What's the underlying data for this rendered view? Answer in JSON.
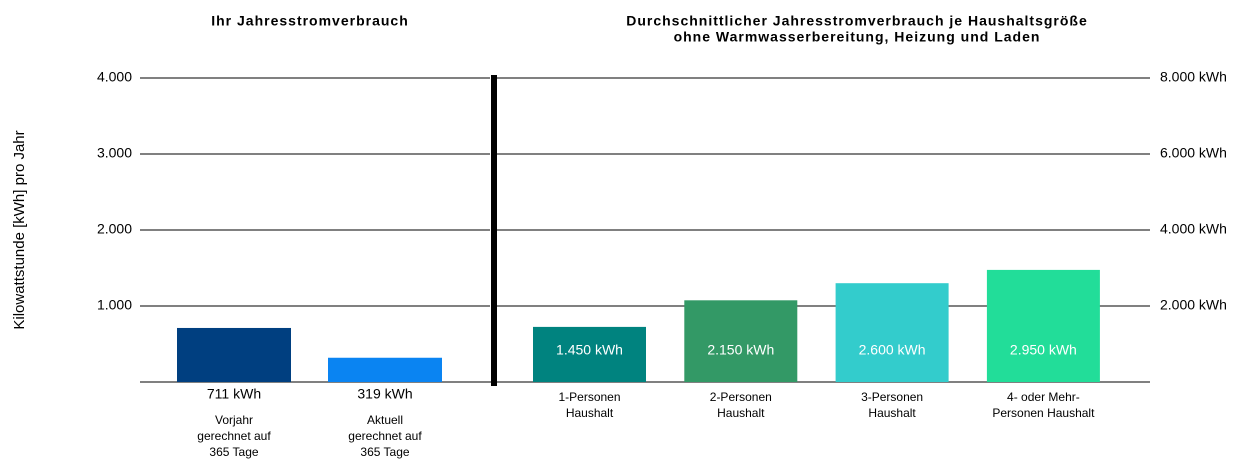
{
  "chart_data": [
    {
      "type": "bar",
      "title": "Ihr Jahresstromverbrauch",
      "ylabel": "Kilowattstunde [kWh] pro Jahr",
      "categories": [
        [
          "Vorjahr",
          "gerechnet auf",
          "365 Tage"
        ],
        [
          "Aktuell",
          "gerechnet auf",
          "365 Tage"
        ]
      ],
      "values": [
        711,
        319
      ],
      "value_labels": [
        "711 kWh",
        "319 kWh"
      ],
      "colors": [
        "#003f80",
        "#0a84f2"
      ],
      "ylim": [
        0,
        4000
      ],
      "yticks": [
        {
          "value": 1000,
          "label": "1.000"
        },
        {
          "value": 2000,
          "label": "2.000"
        },
        {
          "value": 3000,
          "label": "3.000"
        },
        {
          "value": 4000,
          "label": "4.000"
        }
      ],
      "grid": true
    },
    {
      "type": "bar",
      "title": "Durchschnittlicher Jahresstromverbrauch je Haushaltsgröße",
      "subtitle": "ohne Warmwasserbereitung, Heizung und Laden",
      "categories": [
        [
          "1-Personen",
          "Haushalt"
        ],
        [
          "2-Personen",
          "Haushalt"
        ],
        [
          "3-Personen",
          "Haushalt"
        ],
        [
          "4- oder Mehr-",
          "Personen Haushalt"
        ]
      ],
      "series": [
        {
          "axis": "y2",
          "values": [
            1450,
            2150,
            2600,
            2950
          ],
          "value_labels": [
            "1.450 kWh",
            "2.150 kWh",
            "2.600 kWh",
            "2.950 kWh"
          ],
          "colors": [
            "#00837f",
            "#339966",
            "#33cccc",
            "#22dd99"
          ]
        }
      ],
      "y2lim": [
        0,
        8000
      ],
      "y2ticks": [
        {
          "value": 2000,
          "label": "2.000 kWh"
        },
        {
          "value": 4000,
          "label": "4.000 kWh"
        },
        {
          "value": 6000,
          "label": "6.000 kWh"
        },
        {
          "value": 8000,
          "label": "8.000 kWh"
        }
      ],
      "grid": true
    }
  ]
}
